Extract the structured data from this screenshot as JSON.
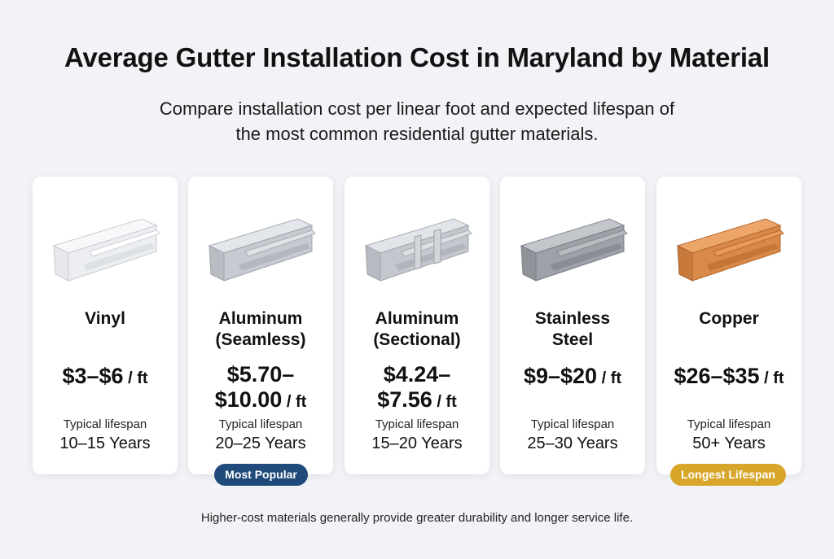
{
  "title": "Average Gutter Installation Cost in Maryland by Material",
  "subtitle_line1": "Compare installation cost per linear foot and expected lifespan of",
  "subtitle_line2": "the most common residential gutter materials.",
  "cards": [
    {
      "name_line1": "Vinyl",
      "name_line2": "",
      "price_line1": "$3–$6",
      "price_line2": "",
      "unit": " / ft",
      "lifespan_label": "Typical lifespan",
      "lifespan": "10–15 Years"
    },
    {
      "name_line1": "Aluminum",
      "name_line2": "(Seamless)",
      "price_line1": "$5.70–",
      "price_line2": "$10.00",
      "unit": " / ft",
      "lifespan_label": "Typical lifespan",
      "lifespan": "20–25 Years"
    },
    {
      "name_line1": "Aluminum",
      "name_line2": "(Sectional)",
      "price_line1": "$4.24–",
      "price_line2": "$7.56",
      "unit": " / ft",
      "lifespan_label": "Typical lifespan",
      "lifespan": "15–20 Years"
    },
    {
      "name_line1": "Stainless",
      "name_line2": "Steel",
      "price_line1": "$9–$20",
      "price_line2": "",
      "unit": " / ft",
      "lifespan_label": "Typical lifespan",
      "lifespan": "25–30 Years"
    },
    {
      "name_line1": "Copper",
      "name_line2": "",
      "price_line1": "$26–$35",
      "price_line2": "",
      "unit": " / ft",
      "lifespan_label": "Typical lifespan",
      "lifespan": "50+ Years"
    }
  ],
  "badges": {
    "most_popular": "Most Popular",
    "longest_lifespan": "Longest Lifespan"
  },
  "colors": {
    "most_popular_badge": "#1f4a7a",
    "longest_lifespan_badge": "#d8a62a",
    "vinyl": "#eceef1",
    "aluminum": "#c7cbd1",
    "sectional": "#c4c8ce",
    "stainless": "#9ea2a8",
    "copper": "#d98a4a"
  },
  "footer": "Higher-cost materials generally provide greater durability and longer service life."
}
